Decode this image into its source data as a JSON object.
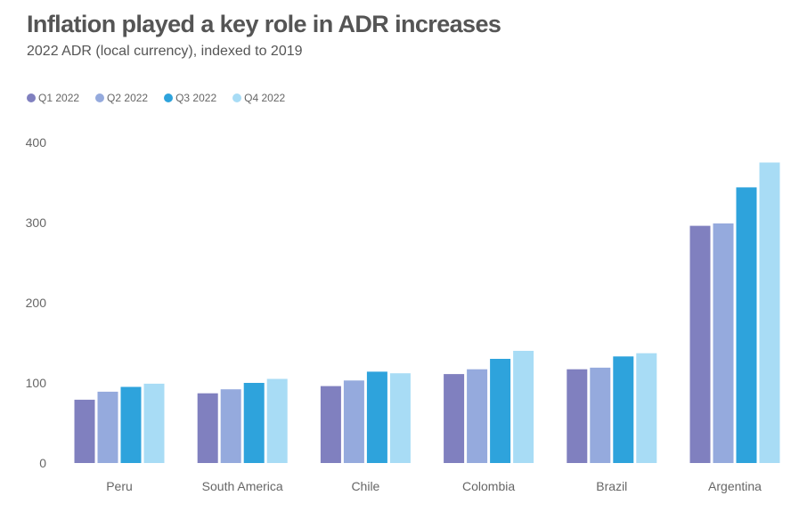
{
  "chart_data": {
    "type": "bar",
    "title": "Inflation played a key role in ADR increases",
    "subtitle": "2022 ADR (local currency), indexed to 2019",
    "xlabel": "",
    "ylabel": "",
    "categories": [
      "Peru",
      "South America",
      "Chile",
      "Colombia",
      "Brazil",
      "Argentina"
    ],
    "series": [
      {
        "name": "Q1 2022",
        "color": "#8080bf",
        "values": [
          79,
          87,
          96,
          111,
          117,
          296
        ]
      },
      {
        "name": "Q2 2022",
        "color": "#95aadd",
        "values": [
          89,
          92,
          103,
          117,
          119,
          299
        ]
      },
      {
        "name": "Q3 2022",
        "color": "#2ea3dc",
        "values": [
          95,
          100,
          114,
          130,
          133,
          344
        ]
      },
      {
        "name": "Q4 2022",
        "color": "#a8dcf5",
        "values": [
          99,
          105,
          112,
          140,
          137,
          375
        ]
      }
    ],
    "ylim": [
      0,
      400
    ],
    "yticks": [
      "0",
      "100",
      "200",
      "300",
      "400"
    ],
    "grid": false,
    "legend_position": "top-left"
  }
}
